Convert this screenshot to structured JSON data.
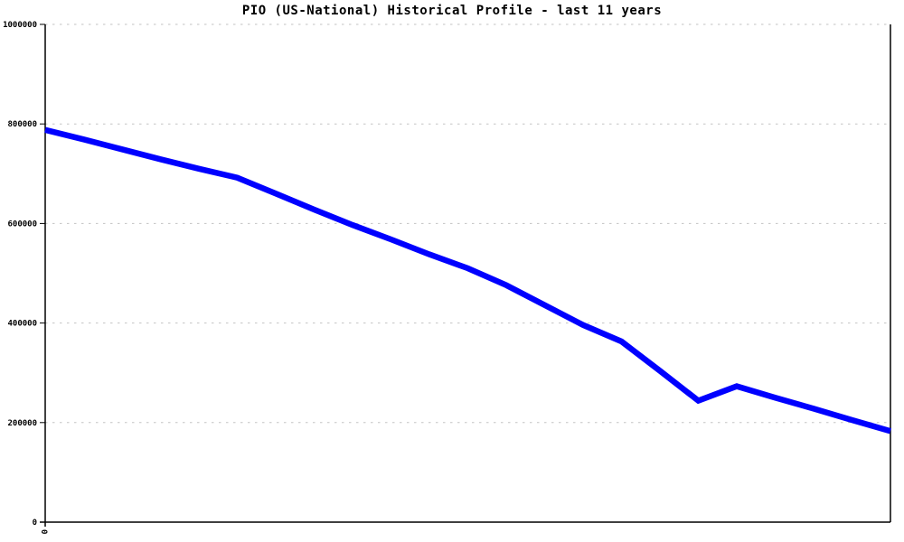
{
  "chart_data": {
    "type": "line",
    "title": "PIO (US-National) Historical Profile - last 11 years",
    "x_range": [
      0,
      11
    ],
    "y_range": [
      0,
      1000000
    ],
    "x_unit": "years",
    "grid": "horizontal-dashed",
    "legend": "none",
    "y_ticks": [
      0,
      200000,
      400000,
      600000,
      800000,
      1000000
    ],
    "y_tick_labels": [
      "0",
      "200000",
      "400000",
      "600000",
      "800000",
      "1000000"
    ],
    "x_ticks": [
      0
    ],
    "x_tick_labels": [
      "0"
    ],
    "series": [
      {
        "name": "PIO (US-National)",
        "color": "#0000ff",
        "x": [
          0,
          0.5,
          1,
          1.5,
          2,
          2.5,
          3,
          3.5,
          4,
          4.5,
          5,
          5.5,
          6,
          6.5,
          7,
          7.5,
          8,
          8.5,
          9,
          9.5,
          10,
          10.5,
          11
        ],
        "values": [
          788000,
          769000,
          749000,
          729000,
          710000,
          692000,
          660000,
          628000,
          597000,
          568000,
          538000,
          510000,
          476000,
          436000,
          396000,
          363000,
          304000,
          244000,
          273000,
          250000,
          228000,
          205000,
          183000
        ]
      }
    ],
    "colors": {
      "line": "#0000ff",
      "grid": "#c3c3c3",
      "axis": "#000000",
      "text": "#000000",
      "background": "#ffffff"
    }
  }
}
